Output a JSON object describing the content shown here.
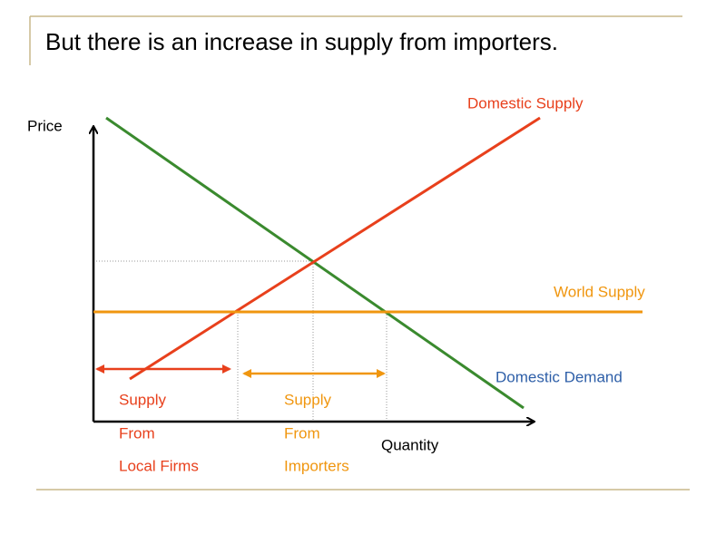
{
  "title": "But there is an increase in supply from importers.",
  "axes": {
    "y_label": "Price",
    "x_label": "Quantity"
  },
  "curves": [
    {
      "label": "Domestic Supply"
    },
    {
      "label": "World Supply"
    },
    {
      "label": "Domestic Demand"
    }
  ],
  "annotations": [
    {
      "lines": [
        "Supply",
        "From",
        "Local Firms"
      ]
    },
    {
      "lines": [
        "Supply",
        "From",
        "Importers"
      ]
    }
  ]
}
